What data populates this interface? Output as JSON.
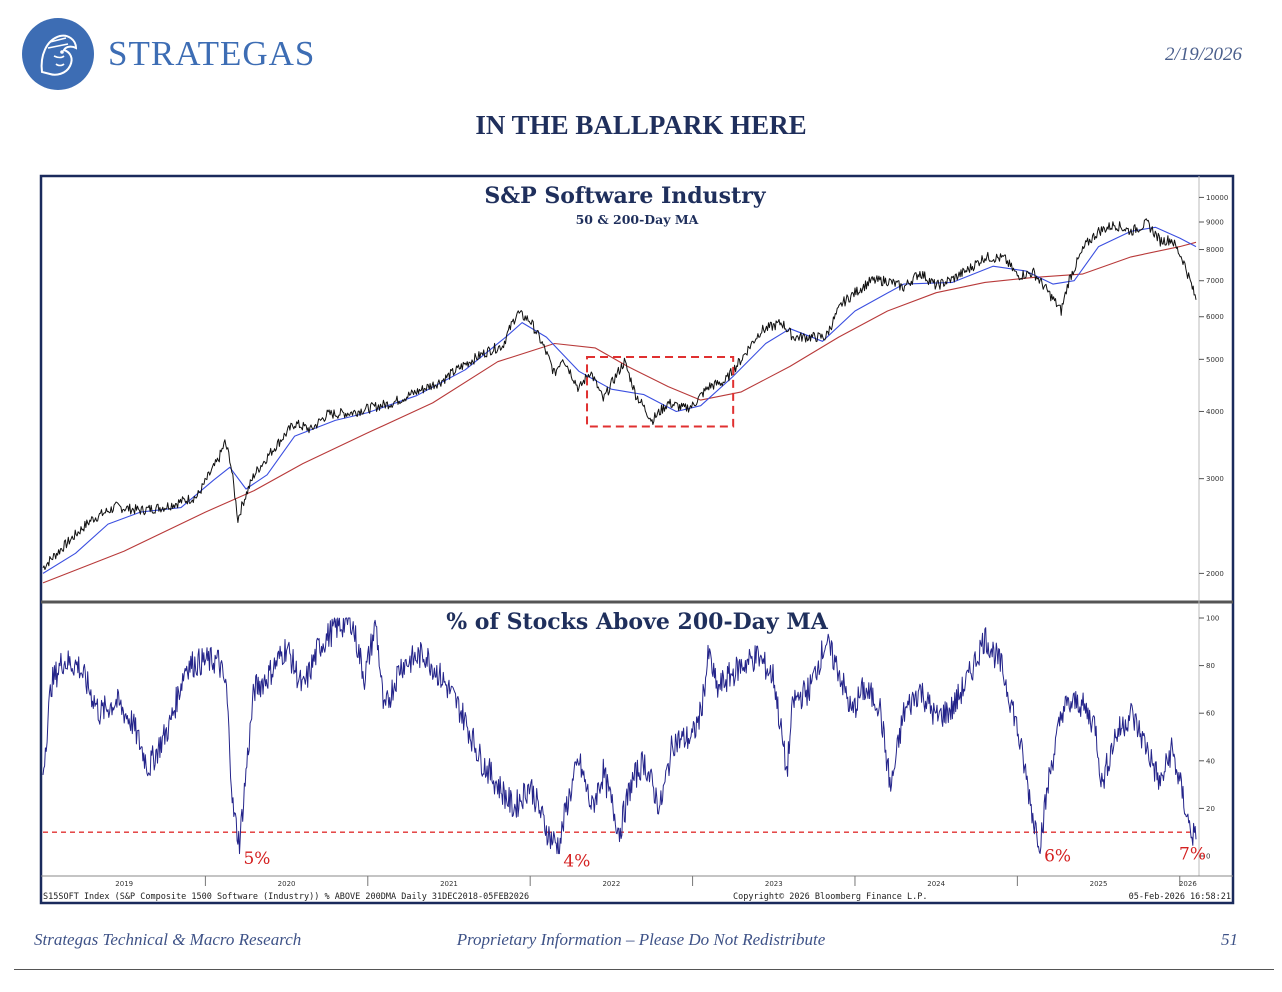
{
  "brand": {
    "name": "STRATEGAS",
    "logo_icon": "helmeted-head-emblem-icon",
    "color": "#3d6db4"
  },
  "date": "2/19/2026",
  "title": "IN THE BALLPARK HERE",
  "footer": {
    "left": "Strategas Technical & Macro Research",
    "center": "Proprietary Information – Please Do Not Redistribute",
    "page": "51"
  },
  "source_text": "S15SOFT Index (S&P Composite 1500 Software (Industry)) % ABOVE 200DMA Daily 31DEC2018-05FEB2026",
  "copyright_text": "Copyright© 2026 Bloomberg Finance L.P.",
  "timestamp_text": "05-Feb-2026 16:58:21",
  "chart_data": [
    {
      "type": "line",
      "title": "S&P Software Industry",
      "subtitle": "50 & 200-Day MA",
      "y_scale": "log",
      "ylim": [
        1800,
        10500
      ],
      "y_ticks": [
        2000,
        3000,
        4000,
        5000,
        6000,
        7000,
        8000,
        9000,
        10000
      ],
      "x_range": [
        2019.0,
        2026.1
      ],
      "colors": {
        "price": "#111111",
        "ma50": "#3b4fe0",
        "ma200": "#b83a3a"
      },
      "series": [
        {
          "key": "price",
          "points": [
            [
              2019.0,
              2050
            ],
            [
              2019.15,
              2280
            ],
            [
              2019.3,
              2520
            ],
            [
              2019.45,
              2660
            ],
            [
              2019.6,
              2620
            ],
            [
              2019.75,
              2660
            ],
            [
              2019.95,
              2780
            ],
            [
              2020.08,
              3250
            ],
            [
              2020.12,
              3500
            ],
            [
              2020.15,
              3280
            ],
            [
              2020.2,
              2520
            ],
            [
              2020.23,
              2700
            ],
            [
              2020.3,
              3050
            ],
            [
              2020.45,
              3500
            ],
            [
              2020.55,
              3800
            ],
            [
              2020.65,
              3700
            ],
            [
              2020.75,
              3950
            ],
            [
              2020.9,
              3980
            ],
            [
              2021.0,
              4050
            ],
            [
              2021.15,
              4150
            ],
            [
              2021.3,
              4350
            ],
            [
              2021.45,
              4550
            ],
            [
              2021.6,
              4900
            ],
            [
              2021.75,
              5200
            ],
            [
              2021.83,
              5300
            ],
            [
              2021.92,
              6100
            ],
            [
              2022.0,
              5900
            ],
            [
              2022.08,
              5300
            ],
            [
              2022.15,
              4700
            ],
            [
              2022.2,
              5050
            ],
            [
              2022.3,
              4400
            ],
            [
              2022.37,
              4750
            ],
            [
              2022.45,
              4200
            ],
            [
              2022.5,
              4500
            ],
            [
              2022.58,
              4950
            ],
            [
              2022.65,
              4300
            ],
            [
              2022.75,
              3850
            ],
            [
              2022.85,
              4150
            ],
            [
              2022.95,
              4050
            ],
            [
              2023.0,
              4100
            ],
            [
              2023.1,
              4450
            ],
            [
              2023.2,
              4550
            ],
            [
              2023.3,
              5000
            ],
            [
              2023.42,
              5650
            ],
            [
              2023.55,
              5850
            ],
            [
              2023.62,
              5500
            ],
            [
              2023.72,
              5500
            ],
            [
              2023.82,
              5500
            ],
            [
              2023.92,
              6350
            ],
            [
              2024.0,
              6650
            ],
            [
              2024.1,
              7000
            ],
            [
              2024.2,
              7000
            ],
            [
              2024.3,
              6800
            ],
            [
              2024.4,
              7250
            ],
            [
              2024.5,
              6850
            ],
            [
              2024.6,
              7050
            ],
            [
              2024.7,
              7350
            ],
            [
              2024.8,
              7750
            ],
            [
              2024.92,
              7700
            ],
            [
              2025.0,
              7150
            ],
            [
              2025.1,
              7250
            ],
            [
              2025.2,
              6600
            ],
            [
              2025.27,
              6150
            ],
            [
              2025.32,
              7050
            ],
            [
              2025.42,
              8150
            ],
            [
              2025.5,
              8650
            ],
            [
              2025.6,
              8900
            ],
            [
              2025.7,
              8650
            ],
            [
              2025.8,
              8950
            ],
            [
              2025.88,
              8300
            ],
            [
              2025.95,
              8350
            ],
            [
              2026.02,
              7650
            ],
            [
              2026.06,
              7050
            ],
            [
              2026.1,
              6450
            ]
          ]
        },
        {
          "key": "ma50",
          "points": [
            [
              2019.0,
              2000
            ],
            [
              2019.2,
              2180
            ],
            [
              2019.4,
              2470
            ],
            [
              2019.6,
              2600
            ],
            [
              2019.85,
              2650
            ],
            [
              2020.05,
              2980
            ],
            [
              2020.15,
              3150
            ],
            [
              2020.25,
              2870
            ],
            [
              2020.38,
              3050
            ],
            [
              2020.55,
              3600
            ],
            [
              2020.8,
              3850
            ],
            [
              2021.0,
              3980
            ],
            [
              2021.3,
              4280
            ],
            [
              2021.6,
              4780
            ],
            [
              2021.85,
              5500
            ],
            [
              2021.95,
              5850
            ],
            [
              2022.1,
              5500
            ],
            [
              2022.3,
              4750
            ],
            [
              2022.5,
              4400
            ],
            [
              2022.7,
              4300
            ],
            [
              2022.9,
              4000
            ],
            [
              2023.05,
              4100
            ],
            [
              2023.25,
              4650
            ],
            [
              2023.45,
              5350
            ],
            [
              2023.6,
              5700
            ],
            [
              2023.8,
              5400
            ],
            [
              2024.0,
              6150
            ],
            [
              2024.3,
              6900
            ],
            [
              2024.6,
              6950
            ],
            [
              2024.85,
              7450
            ],
            [
              2025.05,
              7300
            ],
            [
              2025.22,
              6900
            ],
            [
              2025.35,
              7000
            ],
            [
              2025.5,
              8100
            ],
            [
              2025.7,
              8650
            ],
            [
              2025.85,
              8800
            ],
            [
              2026.0,
              8400
            ],
            [
              2026.1,
              8100
            ]
          ]
        },
        {
          "key": "ma200",
          "points": [
            [
              2019.0,
              1920
            ],
            [
              2019.5,
              2200
            ],
            [
              2020.0,
              2600
            ],
            [
              2020.3,
              2850
            ],
            [
              2020.6,
              3200
            ],
            [
              2021.0,
              3650
            ],
            [
              2021.4,
              4150
            ],
            [
              2021.8,
              4950
            ],
            [
              2022.15,
              5350
            ],
            [
              2022.4,
              5250
            ],
            [
              2022.6,
              4850
            ],
            [
              2022.85,
              4450
            ],
            [
              2023.05,
              4200
            ],
            [
              2023.3,
              4350
            ],
            [
              2023.6,
              4850
            ],
            [
              2023.9,
              5500
            ],
            [
              2024.2,
              6150
            ],
            [
              2024.5,
              6650
            ],
            [
              2024.8,
              6950
            ],
            [
              2025.1,
              7100
            ],
            [
              2025.4,
              7200
            ],
            [
              2025.7,
              7750
            ],
            [
              2026.0,
              8100
            ],
            [
              2026.1,
              8250
            ]
          ]
        }
      ],
      "highlight_box": {
        "x": [
          2022.35,
          2023.25
        ],
        "y": [
          3750,
          5050
        ],
        "color": "#e03030"
      }
    },
    {
      "type": "line",
      "title": "% of Stocks Above 200-Day MA",
      "ylim": [
        0,
        100
      ],
      "y_ticks": [
        0,
        20,
        40,
        60,
        80,
        100
      ],
      "x_range": [
        2019.0,
        2026.1
      ],
      "x_tick_labels": [
        "2019",
        "2020",
        "2021",
        "2022",
        "2023",
        "2024",
        "2025",
        "2026"
      ],
      "x_label_positions": [
        2019.5,
        2020.5,
        2021.5,
        2022.5,
        2023.5,
        2024.5,
        2025.5,
        2026.05
      ],
      "x_dividers": [
        2020.0,
        2021.0,
        2022.0,
        2023.0,
        2024.0,
        2025.0,
        2026.0
      ],
      "color": "#24248a",
      "reference_line": {
        "y": 10,
        "color": "#e03030"
      },
      "series": [
        {
          "key": "breadth",
          "points": [
            [
              2019.0,
              35
            ],
            [
              2019.05,
              72
            ],
            [
              2019.12,
              82
            ],
            [
              2019.22,
              80
            ],
            [
              2019.35,
              60
            ],
            [
              2019.45,
              65
            ],
            [
              2019.55,
              56
            ],
            [
              2019.65,
              37
            ],
            [
              2019.78,
              55
            ],
            [
              2019.88,
              80
            ],
            [
              2020.0,
              82
            ],
            [
              2020.08,
              82
            ],
            [
              2020.13,
              70
            ],
            [
              2020.17,
              20
            ],
            [
              2020.21,
              5
            ],
            [
              2020.25,
              35
            ],
            [
              2020.3,
              70
            ],
            [
              2020.38,
              75
            ],
            [
              2020.5,
              88
            ],
            [
              2020.6,
              70
            ],
            [
              2020.7,
              88
            ],
            [
              2020.8,
              96
            ],
            [
              2020.9,
              99
            ],
            [
              2020.98,
              75
            ],
            [
              2021.05,
              98
            ],
            [
              2021.1,
              60
            ],
            [
              2021.2,
              80
            ],
            [
              2021.35,
              85
            ],
            [
              2021.5,
              70
            ],
            [
              2021.58,
              60
            ],
            [
              2021.7,
              40
            ],
            [
              2021.8,
              30
            ],
            [
              2021.9,
              20
            ],
            [
              2022.0,
              30
            ],
            [
              2022.08,
              15
            ],
            [
              2022.12,
              8
            ],
            [
              2022.18,
              4
            ],
            [
              2022.22,
              20
            ],
            [
              2022.3,
              40
            ],
            [
              2022.38,
              20
            ],
            [
              2022.45,
              35
            ],
            [
              2022.55,
              10
            ],
            [
              2022.62,
              30
            ],
            [
              2022.7,
              40
            ],
            [
              2022.8,
              20
            ],
            [
              2022.88,
              48
            ],
            [
              2023.0,
              50
            ],
            [
              2023.05,
              60
            ],
            [
              2023.1,
              85
            ],
            [
              2023.15,
              70
            ],
            [
              2023.22,
              75
            ],
            [
              2023.3,
              80
            ],
            [
              2023.4,
              84
            ],
            [
              2023.5,
              75
            ],
            [
              2023.58,
              35
            ],
            [
              2023.62,
              65
            ],
            [
              2023.72,
              70
            ],
            [
              2023.82,
              90
            ],
            [
              2023.9,
              78
            ],
            [
              2023.98,
              60
            ],
            [
              2024.05,
              70
            ],
            [
              2024.15,
              64
            ],
            [
              2024.22,
              28
            ],
            [
              2024.3,
              60
            ],
            [
              2024.4,
              70
            ],
            [
              2024.5,
              58
            ],
            [
              2024.6,
              62
            ],
            [
              2024.7,
              75
            ],
            [
              2024.8,
              92
            ],
            [
              2024.9,
              80
            ],
            [
              2024.98,
              60
            ],
            [
              2025.05,
              35
            ],
            [
              2025.1,
              15
            ],
            [
              2025.14,
              6
            ],
            [
              2025.2,
              35
            ],
            [
              2025.28,
              62
            ],
            [
              2025.38,
              65
            ],
            [
              2025.48,
              55
            ],
            [
              2025.52,
              30
            ],
            [
              2025.6,
              50
            ],
            [
              2025.7,
              60
            ],
            [
              2025.8,
              45
            ],
            [
              2025.88,
              30
            ],
            [
              2025.95,
              45
            ],
            [
              2026.02,
              25
            ],
            [
              2026.06,
              12
            ],
            [
              2026.1,
              7
            ]
          ]
        }
      ],
      "annotations": [
        {
          "label": "5%",
          "x": 2020.21,
          "y": 5
        },
        {
          "label": "4%",
          "x": 2022.18,
          "y": 4
        },
        {
          "label": "6%",
          "x": 2025.14,
          "y": 6
        },
        {
          "label": "7%",
          "x": 2026.1,
          "y": 7
        }
      ]
    }
  ]
}
